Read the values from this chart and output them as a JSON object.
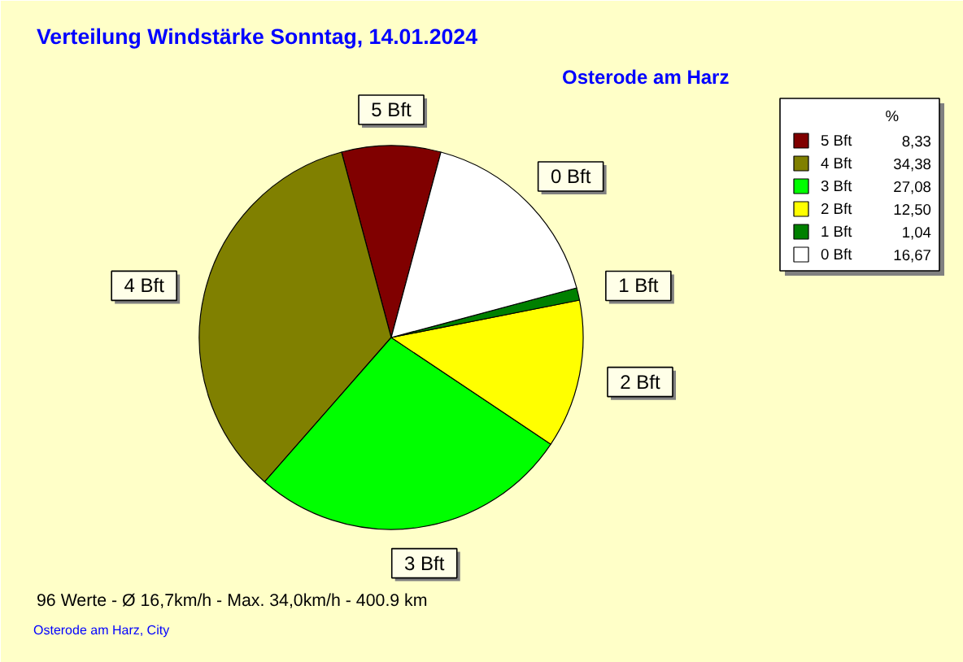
{
  "chart_data": {
    "type": "pie",
    "title": "Verteilung Windstärke  Sonntag, 14.01.2024",
    "subtitle": "Osterode am Harz",
    "legend_title": "%",
    "categories": [
      "5 Bft",
      "4 Bft",
      "3 Bft",
      "2 Bft",
      "1 Bft",
      "0 Bft"
    ],
    "values": [
      8.33,
      34.38,
      27.08,
      12.5,
      1.04,
      16.67
    ],
    "value_labels": [
      "8,33",
      "34,38",
      "27,08",
      "12,50",
      "1,04",
      "16,67"
    ],
    "colors": [
      "#800000",
      "#808000",
      "#00ff00",
      "#ffff00",
      "#008000",
      "#ffffff"
    ],
    "legend": "top right",
    "annotations": [
      "96 Werte   -   Ø 16,7km/h  -  Max. 34,0km/h   -   400.9 km",
      "Osterode am Harz, City"
    ]
  }
}
